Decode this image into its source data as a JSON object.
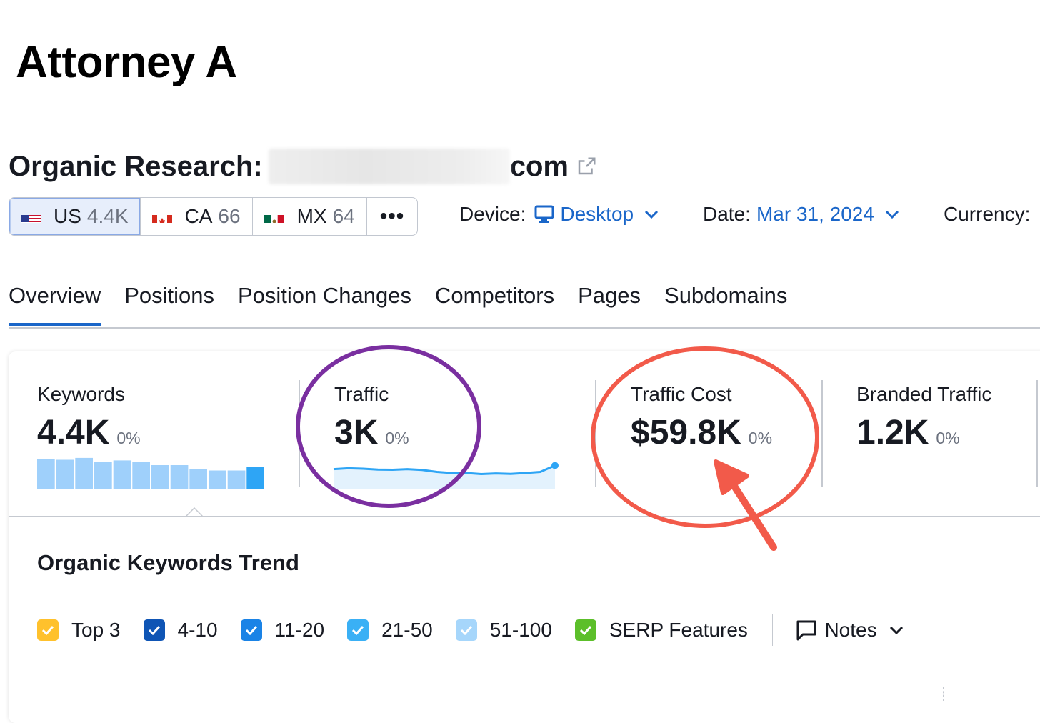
{
  "page_title": "Attorney A",
  "research": {
    "label": "Organic Research:",
    "domain_suffix": "com"
  },
  "databases": [
    {
      "code": "US",
      "count": "4.4K",
      "active": true
    },
    {
      "code": "CA",
      "count": "66",
      "active": false
    },
    {
      "code": "MX",
      "count": "64",
      "active": false
    }
  ],
  "more_label": "•••",
  "filters": {
    "device_label": "Device:",
    "device_value": "Desktop",
    "date_label": "Date:",
    "date_value": "Mar 31, 2024",
    "currency_label": "Currency:"
  },
  "tabs": [
    {
      "label": "Overview",
      "active": true
    },
    {
      "label": "Positions",
      "active": false
    },
    {
      "label": "Position Changes",
      "active": false
    },
    {
      "label": "Competitors",
      "active": false
    },
    {
      "label": "Pages",
      "active": false
    },
    {
      "label": "Subdomains",
      "active": false
    }
  ],
  "metrics": [
    {
      "label": "Keywords",
      "value": "4.4K",
      "change": "0%"
    },
    {
      "label": "Traffic",
      "value": "3K",
      "change": "0%"
    },
    {
      "label": "Traffic Cost",
      "value": "$59.8K",
      "change": "0%"
    },
    {
      "label": "Branded Traffic",
      "value": "1.2K",
      "change": "0%"
    }
  ],
  "keywords_sparkbars": [
    0.95,
    0.92,
    0.98,
    0.85,
    0.9,
    0.85,
    0.75,
    0.75,
    0.62,
    0.58,
    0.58,
    0.7
  ],
  "traffic_sparkline": [
    0.78,
    0.82,
    0.8,
    0.76,
    0.75,
    0.78,
    0.74,
    0.65,
    0.6,
    0.6,
    0.55,
    0.58,
    0.56,
    0.6,
    0.65,
    0.95
  ],
  "trend_title": "Organic Keywords Trend",
  "legend": [
    {
      "label": "Top 3",
      "color": "#ffc12c"
    },
    {
      "label": "4-10",
      "color": "#0f55b5"
    },
    {
      "label": "11-20",
      "color": "#1a83e6"
    },
    {
      "label": "21-50",
      "color": "#3ab0f5"
    },
    {
      "label": "51-100",
      "color": "#a6d6fb"
    },
    {
      "label": "SERP Features",
      "color": "#5cbf2a"
    }
  ],
  "notes_label": "Notes",
  "colors": {
    "accent": "#1a66c9",
    "sparkbar": "#9fd0fb",
    "sparkbar_last": "#2ea5f5",
    "sparkline": "#2ea5f5",
    "annotation_purple": "#7a2fa0",
    "annotation_red": "#f25a4a"
  }
}
